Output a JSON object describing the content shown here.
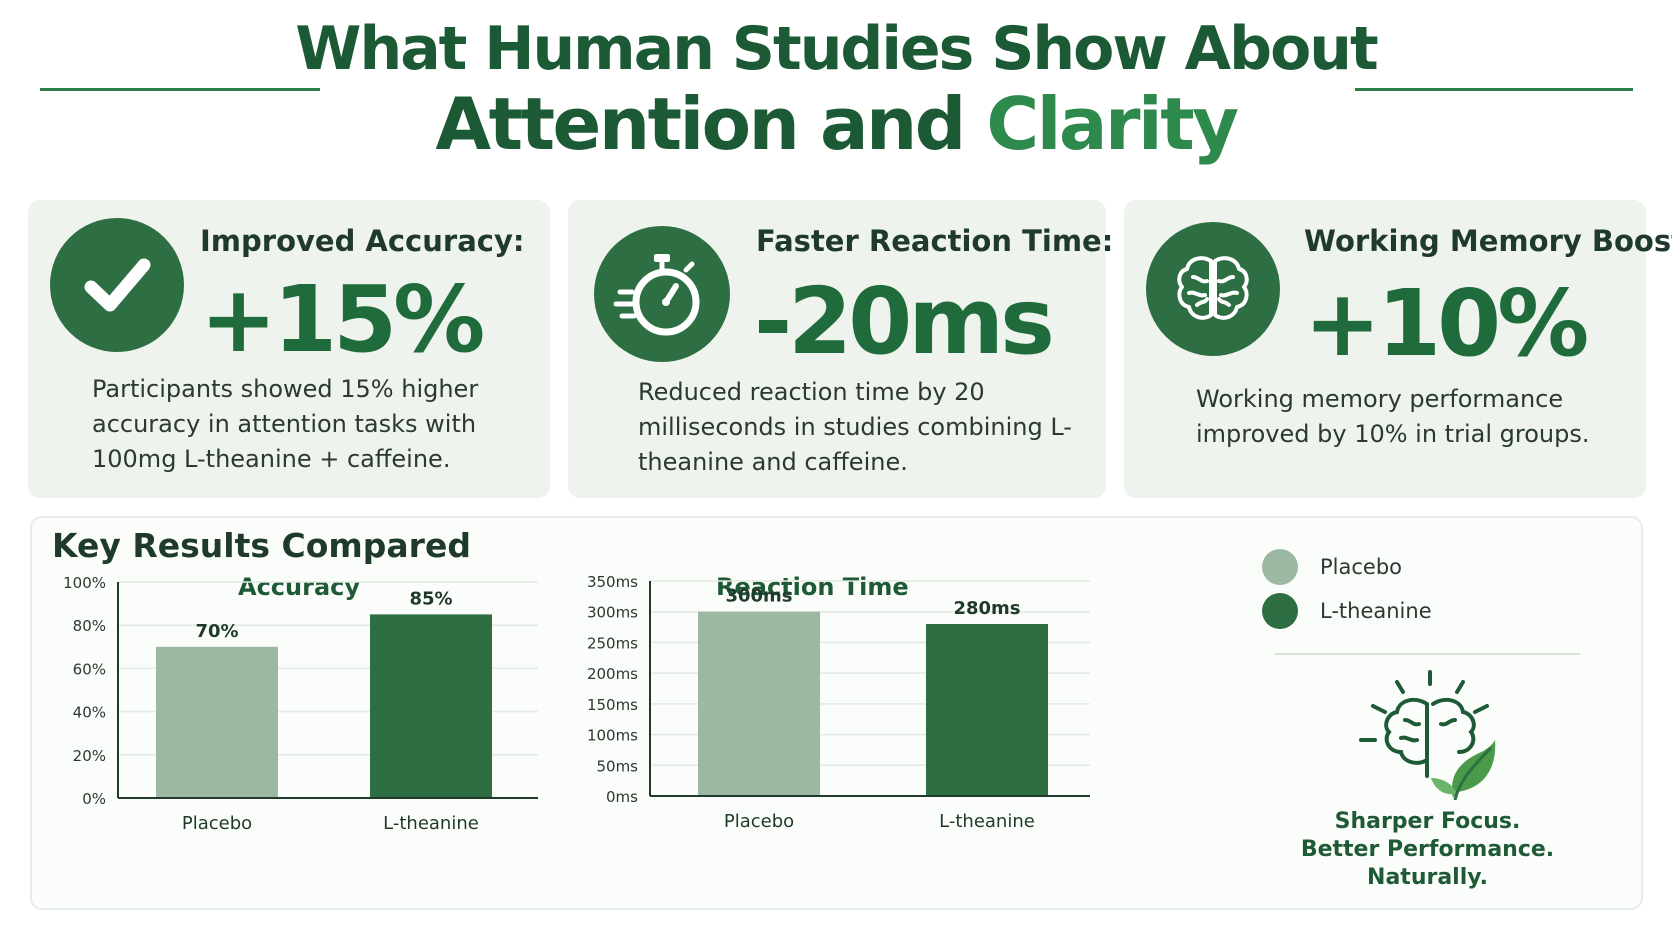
{
  "header": {
    "title_line1": "What Human Studies Show  About",
    "title_line2_a": "Attention and ",
    "title_line2_b": "Clarity"
  },
  "cards": [
    {
      "icon": "checkmark-icon",
      "label": "Improved Accuracy:",
      "value": "+15%",
      "description": "Participants showed 15% higher accuracy in attention tasks with 100mg L-theanine + caffeine."
    },
    {
      "icon": "stopwatch-icon",
      "label": "Faster Reaction Time:",
      "value": "-20ms",
      "description": "Reduced reaction time by 20 milliseconds in studies combining L-theanine and caffeine."
    },
    {
      "icon": "brain-icon",
      "label": "Working Memory Boost:",
      "value": "+10%",
      "description": "Working memory performance improved by 10% in trial groups."
    }
  ],
  "comparison": {
    "title": "Key Results Compared",
    "legend": [
      {
        "label": "Placebo",
        "color": "#9db8a2"
      },
      {
        "label": "L-theanine",
        "color": "#2d6e43"
      }
    ],
    "tagline": [
      "Sharper Focus.",
      "Better Performance.",
      "Naturally."
    ]
  },
  "chart_data": [
    {
      "type": "bar",
      "title": "Accuracy",
      "categories": [
        "Placebo",
        "L-theanine"
      ],
      "values": [
        70,
        85
      ],
      "value_labels": [
        "70%",
        "85%"
      ],
      "ylim": [
        0,
        100
      ],
      "yticks": [
        0,
        20,
        40,
        60,
        80,
        100
      ],
      "ytick_labels": [
        "0%",
        "20%",
        "40%",
        "60%",
        "80%",
        "100%"
      ],
      "colors": [
        "#9db8a2",
        "#2d6e43"
      ],
      "grid": true
    },
    {
      "type": "bar",
      "title": "Reaction Time",
      "categories": [
        "Placebo",
        "L-theanine"
      ],
      "values": [
        300,
        280
      ],
      "value_labels": [
        "300ms",
        "280ms"
      ],
      "ylim": [
        0,
        350
      ],
      "yticks": [
        0,
        50,
        100,
        150,
        200,
        250,
        300,
        350
      ],
      "ytick_labels": [
        "0ms",
        "50ms",
        "100ms",
        "150ms",
        "200ms",
        "250ms",
        "300ms",
        "350ms"
      ],
      "colors": [
        "#9db8a2",
        "#2d6e43"
      ],
      "grid": true
    }
  ]
}
